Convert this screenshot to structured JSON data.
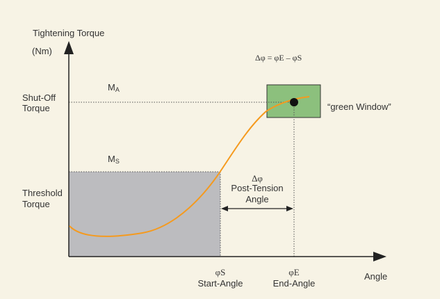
{
  "colors": {
    "background": "#f7f3e5",
    "axis": "#222222",
    "curve": "#f59a1e",
    "threshold_area": "#bcbcbf",
    "green_window": "#8cc07d",
    "text": "#333333"
  },
  "y_axis": {
    "title": "Tightening Torque",
    "unit": "(Nm)"
  },
  "x_axis": {
    "title": "Angle"
  },
  "formula": "Δφ = φE – φS",
  "shutoff": {
    "label_line1": "Shut-Off",
    "label_line2": "Torque",
    "symbol": "M",
    "subscript": "A"
  },
  "threshold": {
    "label_line1": "Threshold",
    "label_line2": "Torque",
    "symbol": "M",
    "subscript": "S"
  },
  "window_label": "“green Window”",
  "post_tension": {
    "symbol": "Δφ",
    "line1": "Post-Tension",
    "line2": "Angle"
  },
  "start": {
    "symbol": "φS",
    "label": "Start-Angle"
  },
  "end": {
    "symbol": "φE",
    "label": "End-Angle"
  }
}
